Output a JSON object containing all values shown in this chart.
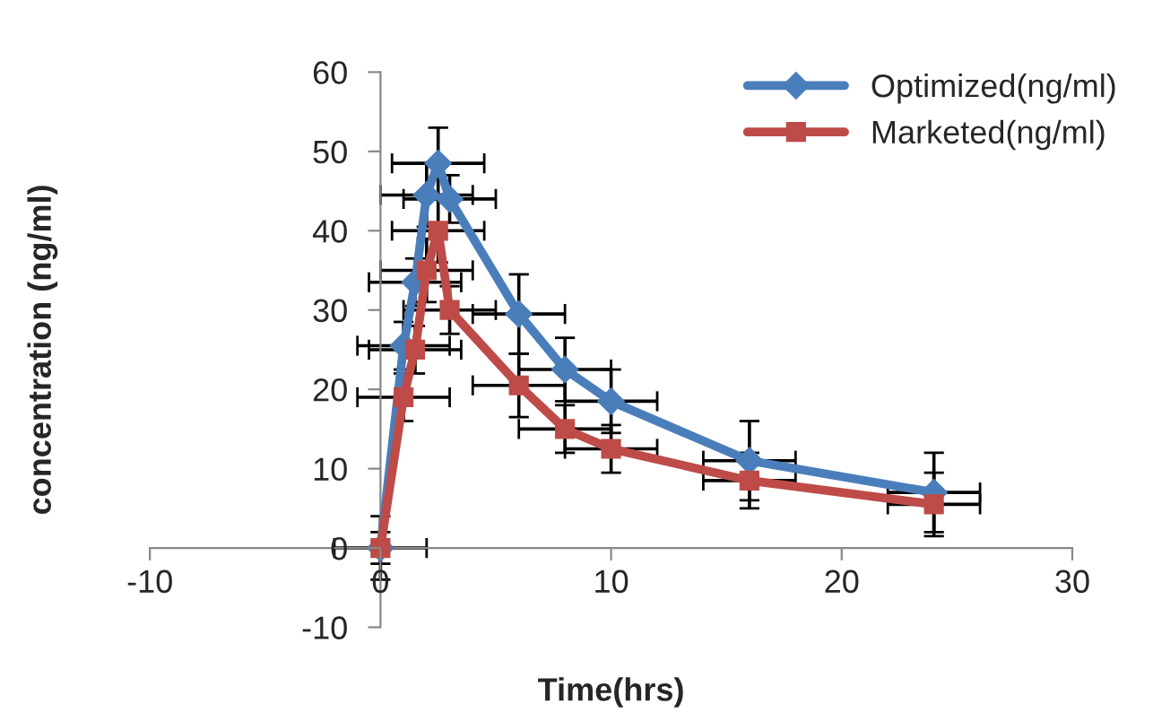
{
  "chart_data": {
    "type": "line",
    "xlabel": "Time(hrs)",
    "ylabel": "concentration (ng/ml)",
    "xlim": [
      -10,
      30
    ],
    "xticks": [
      -10,
      0,
      10,
      20,
      30
    ],
    "ylim": [
      -10,
      60
    ],
    "yticks": [
      -10,
      0,
      10,
      20,
      30,
      40,
      50,
      60
    ],
    "grid": false,
    "legend": "top right",
    "line_style": "solid",
    "series": [
      {
        "name": "Optimized(ng/ml)",
        "color": "#4a7ebb",
        "marker": "diamond",
        "x": [
          0,
          1,
          1.5,
          2,
          2.5,
          3,
          6,
          8,
          10,
          16,
          24
        ],
        "values": [
          0,
          25.5,
          33.5,
          44.5,
          48.5,
          44,
          29.5,
          22.5,
          18.5,
          11,
          7
        ],
        "errors": [
          4,
          3,
          3,
          4,
          4.5,
          3,
          5,
          4,
          4,
          5,
          5
        ],
        "xerrors": [
          null,
          2,
          2,
          2,
          2,
          2,
          2,
          2,
          2,
          2,
          2
        ]
      },
      {
        "name": "Marketed(ng/ml)",
        "color": "#be4b48",
        "marker": "square",
        "x": [
          0,
          1,
          1.5,
          2,
          2.5,
          3,
          6,
          8,
          10,
          16,
          24
        ],
        "values": [
          0,
          19,
          25,
          35,
          40,
          30,
          20.5,
          15,
          12.5,
          8.5,
          5.5
        ],
        "errors": [
          2,
          3,
          3,
          4,
          4,
          3,
          4,
          3,
          3,
          3.5,
          4
        ],
        "xerrors": [
          2,
          2,
          2,
          2,
          2,
          2,
          2,
          2,
          2,
          2,
          2
        ]
      }
    ]
  }
}
